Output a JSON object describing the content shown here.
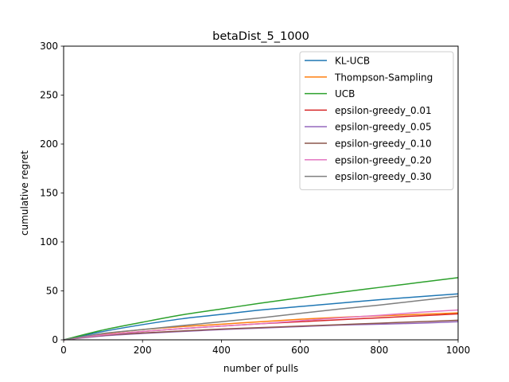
{
  "chart_data": {
    "type": "line",
    "title": "betaDist_5_1000",
    "xlabel": "number of pulls",
    "ylabel": "cumulative regret",
    "xlim": [
      0,
      1000
    ],
    "ylim": [
      0,
      300
    ],
    "xticks": [
      0,
      200,
      400,
      600,
      800,
      1000
    ],
    "yticks": [
      0,
      50,
      100,
      150,
      200,
      250,
      300
    ],
    "grid": false,
    "legend_position": "top-right",
    "x": [
      0,
      100,
      200,
      300,
      400,
      500,
      600,
      700,
      800,
      900,
      1000
    ],
    "series": [
      {
        "name": "KL-UCB",
        "color": "#1f77b4",
        "values": [
          0,
          8.5,
          15.5,
          21.5,
          26.0,
          30.5,
          34.0,
          37.5,
          41.0,
          44.0,
          47.0
        ]
      },
      {
        "name": "Thompson-Sampling",
        "color": "#ff7f0e",
        "values": [
          0,
          6.0,
          10.5,
          13.5,
          16.0,
          18.5,
          21.0,
          23.0,
          24.5,
          26.0,
          27.5
        ]
      },
      {
        "name": "UCB",
        "color": "#2ca02c",
        "values": [
          0,
          10.0,
          18.0,
          25.5,
          31.5,
          37.5,
          43.0,
          48.5,
          53.5,
          58.5,
          63.5
        ]
      },
      {
        "name": "epsilon-greedy_0.01",
        "color": "#d62728",
        "values": [
          0,
          5.0,
          8.5,
          11.5,
          14.0,
          16.5,
          18.5,
          20.5,
          22.5,
          24.5,
          26.5
        ]
      },
      {
        "name": "epsilon-greedy_0.05",
        "color": "#9467bd",
        "values": [
          0,
          4.0,
          6.5,
          8.5,
          10.5,
          12.0,
          13.5,
          15.0,
          16.0,
          17.0,
          18.5
        ]
      },
      {
        "name": "epsilon-greedy_0.10",
        "color": "#8c564b",
        "values": [
          0,
          4.5,
          7.0,
          9.0,
          11.0,
          12.5,
          14.0,
          15.5,
          17.0,
          18.5,
          20.0
        ]
      },
      {
        "name": "epsilon-greedy_0.20",
        "color": "#e377c2",
        "values": [
          0,
          5.0,
          8.5,
          11.5,
          14.0,
          16.5,
          19.5,
          22.5,
          25.0,
          28.0,
          30.5
        ]
      },
      {
        "name": "epsilon-greedy_0.30",
        "color": "#7f7f7f",
        "values": [
          0,
          6.5,
          10.5,
          14.5,
          18.5,
          22.5,
          27.0,
          31.5,
          35.5,
          40.0,
          44.5
        ]
      }
    ]
  }
}
